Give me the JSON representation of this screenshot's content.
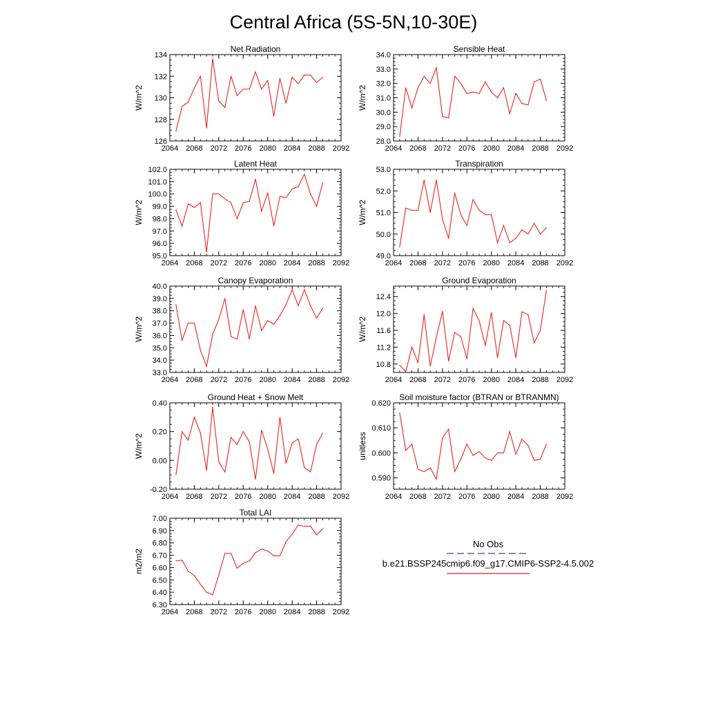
{
  "page": {
    "title": "Central Africa (5S-5N,10-30E)"
  },
  "legend": {
    "obs_label": "No Obs",
    "model_label": "b.e21.BSSP245cmip6.f09_g17.CMIP6-SSP2-4.5.002",
    "obs_color": "#3a3aa8",
    "model_color": "#e8251e"
  },
  "chart_data": [
    {
      "type": "line",
      "title": "Net Radiation",
      "ylabel": "W/m^2",
      "xlim": [
        2064,
        2092
      ],
      "xticks": [
        2064,
        2068,
        2072,
        2076,
        2080,
        2084,
        2088,
        2092
      ],
      "ylim": [
        126,
        134
      ],
      "yticks": [
        126,
        128,
        130,
        132,
        134
      ],
      "ytick_labels": [
        "126",
        "128",
        "130",
        "132",
        "134"
      ],
      "series": [
        {
          "color": "#e8251e",
          "x": [
            2065,
            2066,
            2067,
            2068,
            2069,
            2070,
            2071,
            2072,
            2073,
            2074,
            2075,
            2076,
            2077,
            2078,
            2079,
            2080,
            2081,
            2082,
            2083,
            2084,
            2085,
            2086,
            2087,
            2088,
            2089
          ],
          "values": [
            126.9,
            129.2,
            129.6,
            130.9,
            132.0,
            127.2,
            133.6,
            129.7,
            129.1,
            132.0,
            130.2,
            130.8,
            130.8,
            132.4,
            130.8,
            131.6,
            128.3,
            131.8,
            129.5,
            131.9,
            131.3,
            132.1,
            132.1,
            131.4,
            131.9
          ]
        }
      ]
    },
    {
      "type": "line",
      "title": "Sensible Heat",
      "ylabel": "W/m^2",
      "xlim": [
        2064,
        2092
      ],
      "xticks": [
        2064,
        2068,
        2072,
        2076,
        2080,
        2084,
        2088,
        2092
      ],
      "ylim": [
        28,
        34
      ],
      "yticks": [
        28,
        29,
        30,
        31,
        32,
        33,
        34
      ],
      "ytick_labels": [
        "28.0",
        "29.0",
        "30.0",
        "31.0",
        "32.0",
        "33.0",
        "34.0"
      ],
      "series": [
        {
          "color": "#e8251e",
          "x": [
            2065,
            2066,
            2067,
            2068,
            2069,
            2070,
            2071,
            2072,
            2073,
            2074,
            2075,
            2076,
            2077,
            2078,
            2079,
            2080,
            2081,
            2082,
            2083,
            2084,
            2085,
            2086,
            2087,
            2088,
            2089
          ],
          "values": [
            28.3,
            31.7,
            30.3,
            31.7,
            32.5,
            32.0,
            33.1,
            29.7,
            29.6,
            32.5,
            32.0,
            31.3,
            31.4,
            31.3,
            32.1,
            31.4,
            31.0,
            31.7,
            29.9,
            31.3,
            30.6,
            30.5,
            32.1,
            32.3,
            30.8
          ]
        }
      ]
    },
    {
      "type": "line",
      "title": "Latent Heat",
      "ylabel": "W/m^2",
      "xlim": [
        2064,
        2092
      ],
      "xticks": [
        2064,
        2068,
        2072,
        2076,
        2080,
        2084,
        2088,
        2092
      ],
      "ylim": [
        95,
        102
      ],
      "yticks": [
        95,
        96,
        97,
        98,
        99,
        100,
        101,
        102
      ],
      "ytick_labels": [
        "95.0",
        "96.0",
        "97.0",
        "98.0",
        "99.0",
        "100.0",
        "101.0",
        "102.0"
      ],
      "series": [
        {
          "color": "#e8251e",
          "x": [
            2065,
            2066,
            2067,
            2068,
            2069,
            2070,
            2071,
            2072,
            2073,
            2074,
            2075,
            2076,
            2077,
            2078,
            2079,
            2080,
            2081,
            2082,
            2083,
            2084,
            2085,
            2086,
            2087,
            2088,
            2089
          ],
          "values": [
            98.7,
            97.4,
            99.2,
            98.9,
            99.3,
            95.3,
            100.0,
            100.0,
            99.6,
            99.3,
            98.0,
            99.3,
            99.4,
            101.2,
            98.6,
            100.1,
            97.4,
            99.8,
            99.7,
            100.4,
            100.6,
            101.6,
            100.0,
            99.0,
            100.9
          ]
        }
      ]
    },
    {
      "type": "line",
      "title": "Transpiration",
      "ylabel": "W/m^2",
      "xlim": [
        2064,
        2092
      ],
      "xticks": [
        2064,
        2068,
        2072,
        2076,
        2080,
        2084,
        2088,
        2092
      ],
      "ylim": [
        49,
        53
      ],
      "yticks": [
        49,
        50,
        51,
        52,
        53
      ],
      "ytick_labels": [
        "49.0",
        "50.0",
        "51.0",
        "52.0",
        "53.0"
      ],
      "series": [
        {
          "color": "#e8251e",
          "x": [
            2065,
            2066,
            2067,
            2068,
            2069,
            2070,
            2071,
            2072,
            2073,
            2074,
            2075,
            2076,
            2077,
            2078,
            2079,
            2080,
            2081,
            2082,
            2083,
            2084,
            2085,
            2086,
            2087,
            2088,
            2089
          ],
          "values": [
            49.4,
            51.2,
            51.1,
            51.1,
            52.5,
            51.0,
            52.5,
            50.7,
            49.8,
            51.9,
            50.9,
            50.4,
            51.6,
            51.1,
            50.9,
            50.9,
            49.6,
            50.4,
            49.6,
            49.8,
            50.2,
            50.0,
            50.5,
            50.0,
            50.3
          ]
        }
      ]
    },
    {
      "type": "line",
      "title": "Canopy Evaporation",
      "ylabel": "W/m^2",
      "xlim": [
        2064,
        2092
      ],
      "xticks": [
        2064,
        2068,
        2072,
        2076,
        2080,
        2084,
        2088,
        2092
      ],
      "ylim": [
        33,
        40
      ],
      "yticks": [
        33,
        34,
        35,
        36,
        37,
        38,
        39,
        40
      ],
      "ytick_labels": [
        "33.0",
        "34.0",
        "35.0",
        "36.0",
        "37.0",
        "38.0",
        "39.0",
        "40.0"
      ],
      "series": [
        {
          "color": "#e8251e",
          "x": [
            2065,
            2066,
            2067,
            2068,
            2069,
            2070,
            2071,
            2072,
            2073,
            2074,
            2075,
            2076,
            2077,
            2078,
            2079,
            2080,
            2081,
            2082,
            2083,
            2084,
            2085,
            2086,
            2087,
            2088,
            2089
          ],
          "values": [
            38.5,
            35.6,
            37.0,
            37.0,
            34.8,
            33.5,
            36.1,
            37.3,
            39.0,
            35.9,
            35.7,
            38.1,
            35.7,
            38.4,
            36.4,
            37.2,
            36.9,
            37.6,
            38.5,
            39.7,
            38.4,
            39.7,
            38.4,
            37.4,
            38.2
          ]
        }
      ]
    },
    {
      "type": "line",
      "title": "Ground Evaporation",
      "ylabel": "W/m^2",
      "xlim": [
        2064,
        2092
      ],
      "xticks": [
        2064,
        2068,
        2072,
        2076,
        2080,
        2084,
        2088,
        2092
      ],
      "ylim": [
        10.6,
        12.65
      ],
      "yticks": [
        10.8,
        11.2,
        11.6,
        12.0,
        12.4
      ],
      "ytick_labels": [
        "10.8",
        "11.2",
        "11.6",
        "12.0",
        "12.4"
      ],
      "series": [
        {
          "color": "#e8251e",
          "x": [
            2065,
            2066,
            2067,
            2068,
            2069,
            2070,
            2071,
            2072,
            2073,
            2074,
            2075,
            2076,
            2077,
            2078,
            2079,
            2080,
            2081,
            2082,
            2083,
            2084,
            2085,
            2086,
            2087,
            2088,
            2089
          ],
          "values": [
            10.77,
            10.62,
            11.2,
            10.83,
            11.97,
            10.75,
            11.43,
            12.05,
            10.87,
            11.55,
            11.45,
            10.92,
            12.12,
            11.83,
            11.24,
            12.02,
            10.95,
            11.83,
            11.72,
            10.95,
            12.04,
            11.97,
            11.3,
            11.6,
            12.55
          ]
        }
      ]
    },
    {
      "type": "line",
      "title": "Ground Heat + Snow Melt",
      "ylabel": "W/m^2",
      "xlim": [
        2064,
        2092
      ],
      "xticks": [
        2064,
        2068,
        2072,
        2076,
        2080,
        2084,
        2088,
        2092
      ],
      "ylim": [
        -0.2,
        0.4
      ],
      "yticks": [
        -0.2,
        0.0,
        0.2,
        0.4
      ],
      "ytick_labels": [
        "-0.20",
        "0.00",
        "0.20",
        "0.40"
      ],
      "series": [
        {
          "color": "#e8251e",
          "x": [
            2065,
            2066,
            2067,
            2068,
            2069,
            2070,
            2071,
            2072,
            2073,
            2074,
            2075,
            2076,
            2077,
            2078,
            2079,
            2080,
            2081,
            2082,
            2083,
            2084,
            2085,
            2086,
            2087,
            2088,
            2089
          ],
          "values": [
            -0.1,
            0.2,
            0.14,
            0.3,
            0.19,
            -0.07,
            0.37,
            -0.01,
            -0.08,
            0.16,
            0.11,
            0.2,
            0.13,
            -0.13,
            0.21,
            0.08,
            -0.09,
            0.3,
            -0.02,
            0.12,
            0.15,
            -0.05,
            -0.08,
            0.11,
            0.19
          ]
        }
      ]
    },
    {
      "type": "line",
      "title": "Soil moisture factor (BTRAN or BTRANMN)",
      "ylabel": "unitless",
      "xlim": [
        2064,
        2092
      ],
      "xticks": [
        2064,
        2068,
        2072,
        2076,
        2080,
        2084,
        2088,
        2092
      ],
      "ylim": [
        0.5855,
        0.62
      ],
      "yticks": [
        0.59,
        0.6,
        0.61,
        0.62
      ],
      "ytick_labels": [
        "0.590",
        "0.600",
        "0.610",
        "0.620"
      ],
      "series": [
        {
          "color": "#e8251e",
          "x": [
            2065,
            2066,
            2067,
            2068,
            2069,
            2070,
            2071,
            2072,
            2073,
            2074,
            2075,
            2076,
            2077,
            2078,
            2079,
            2080,
            2081,
            2082,
            2083,
            2084,
            2085,
            2086,
            2087,
            2088,
            2089
          ],
          "values": [
            0.616,
            0.601,
            0.6035,
            0.5935,
            0.5925,
            0.594,
            0.5895,
            0.606,
            0.6095,
            0.5925,
            0.5975,
            0.6035,
            0.599,
            0.6005,
            0.598,
            0.597,
            0.6,
            0.6,
            0.6085,
            0.5995,
            0.6055,
            0.603,
            0.597,
            0.5975,
            0.6035
          ]
        }
      ]
    },
    {
      "type": "line",
      "title": "Total LAI",
      "ylabel": "m2/m2",
      "xlim": [
        2064,
        2092
      ],
      "xticks": [
        2064,
        2068,
        2072,
        2076,
        2080,
        2084,
        2088,
        2092
      ],
      "ylim": [
        6.3,
        7.0
      ],
      "yticks": [
        6.3,
        6.4,
        6.5,
        6.6,
        6.7,
        6.8,
        6.9,
        7.0
      ],
      "ytick_labels": [
        "6.30",
        "6.40",
        "6.50",
        "6.60",
        "6.70",
        "6.80",
        "6.90",
        "7.00"
      ],
      "series": [
        {
          "color": "#e8251e",
          "x": [
            2065,
            2066,
            2067,
            2068,
            2069,
            2070,
            2071,
            2072,
            2073,
            2074,
            2075,
            2076,
            2077,
            2078,
            2079,
            2080,
            2081,
            2082,
            2083,
            2084,
            2085,
            2086,
            2087,
            2088,
            2089
          ],
          "values": [
            6.655,
            6.66,
            6.57,
            6.535,
            6.465,
            6.4,
            6.38,
            6.54,
            6.715,
            6.715,
            6.595,
            6.635,
            6.655,
            6.72,
            6.75,
            6.735,
            6.695,
            6.695,
            6.81,
            6.87,
            6.945,
            6.935,
            6.935,
            6.865,
            6.915
          ]
        }
      ]
    }
  ]
}
